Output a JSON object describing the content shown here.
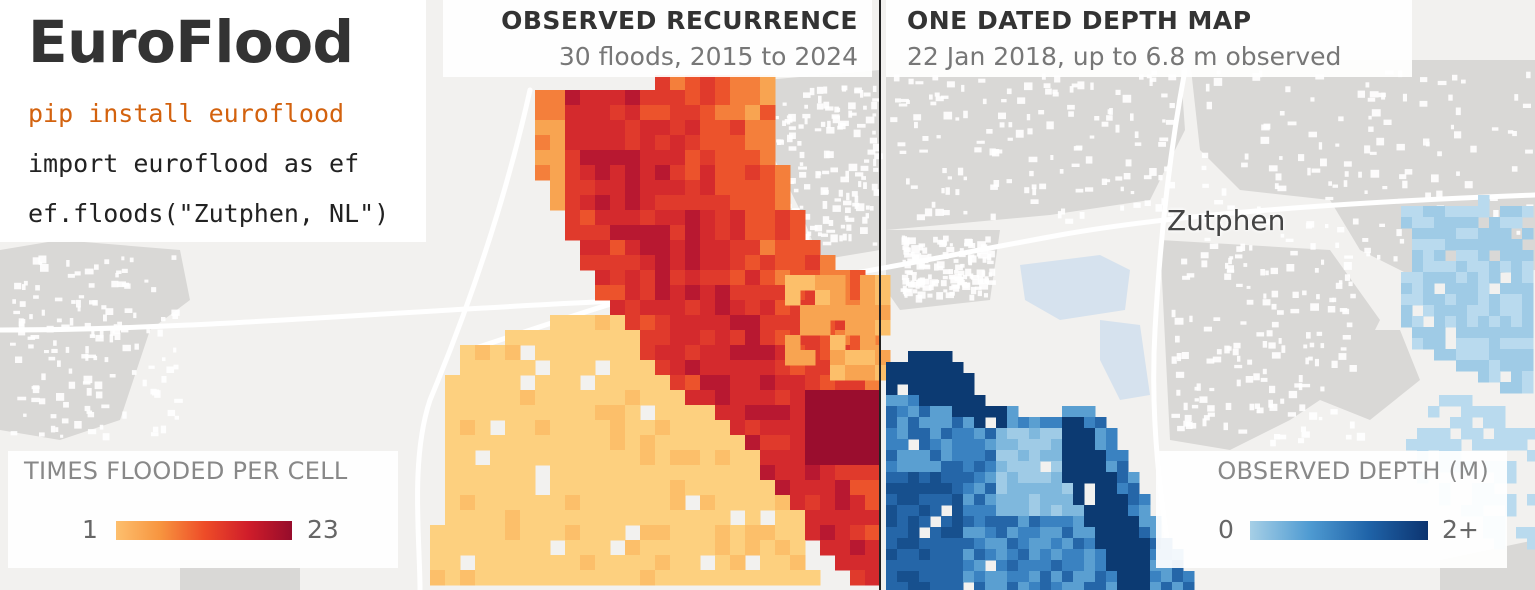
{
  "brand": {
    "title": "EuroFlood",
    "code_lines": [
      "pip install euroflood",
      "import euroflood as ef",
      "ef.floods(\"Zutphen, NL\")"
    ]
  },
  "panels": {
    "recurrence": {
      "title": "OBSERVED RECURRENCE",
      "subtitle": "30 floods, 2015 to 2024"
    },
    "depth": {
      "title": "ONE DATED DEPTH MAP",
      "subtitle": "22 Jan 2018, up to 6.8 m observed"
    }
  },
  "legends": {
    "recurrence": {
      "title": "TIMES FLOODED PER CELL",
      "min": "1",
      "max": "23",
      "colors": [
        "#fdbf6e",
        "#f7953f",
        "#ee4d28",
        "#d01d2a",
        "#960c2b"
      ]
    },
    "depth": {
      "title": "OBSERVED DEPTH (M)",
      "min": "0",
      "max": "2+",
      "colors": [
        "#a6cfe6",
        "#4f9bd2",
        "#1f63a8",
        "#0c3470"
      ]
    }
  },
  "map": {
    "place_label": "Zutphen",
    "colors": {
      "background": "#f2f1ef",
      "urban": "#d9d8d6",
      "building": "#ffffff",
      "road": "#ffffff",
      "water_body": "#d6e2ee",
      "divider": "#222222"
    }
  }
}
